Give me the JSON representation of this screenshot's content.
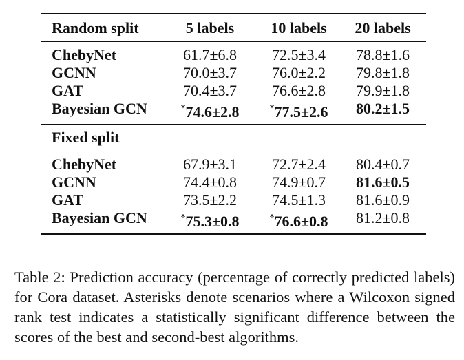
{
  "table": {
    "header": {
      "col0": "Random split",
      "col1": "5 labels",
      "col2": "10 labels",
      "col3": "20 labels"
    },
    "random_rows": [
      {
        "method": "ChebyNet",
        "v5": "61.7±6.8",
        "v10": "72.5±3.4",
        "v20": "78.8±1.6"
      },
      {
        "method": "GCNN",
        "v5": "70.0±3.7",
        "v10": "76.0±2.2",
        "v20": "79.8±1.8"
      },
      {
        "method": "GAT",
        "v5": "70.4±3.7",
        "v10": "76.6±2.8",
        "v20": "79.9±1.8"
      },
      {
        "method": "Bayesian GCN",
        "v5": "74.6±2.8",
        "v10": "77.5±2.6",
        "v20": "80.2±1.5"
      }
    ],
    "fixed_label": "Fixed split",
    "fixed_rows": [
      {
        "method": "ChebyNet",
        "v5": "67.9±3.1",
        "v10": "72.7±2.4",
        "v20": "80.4±0.7"
      },
      {
        "method": "GCNN",
        "v5": "74.4±0.8",
        "v10": "74.9±0.7",
        "v20": "81.6±0.5"
      },
      {
        "method": "GAT",
        "v5": "73.5±2.2",
        "v10": "74.5±1.3",
        "v20": "81.6±0.9"
      },
      {
        "method": "Bayesian GCN",
        "v5": "75.3±0.8",
        "v10": "76.6±0.8",
        "v20": "81.2±0.8"
      }
    ],
    "star": "*"
  },
  "caption": "Table 2: Prediction accuracy (percentage of correctly predicted labels) for Cora dataset. Asterisks denote scenarios where a Wilcoxon signed rank test indicates a statistically significant difference between the scores of the best and second-best algorithms."
}
